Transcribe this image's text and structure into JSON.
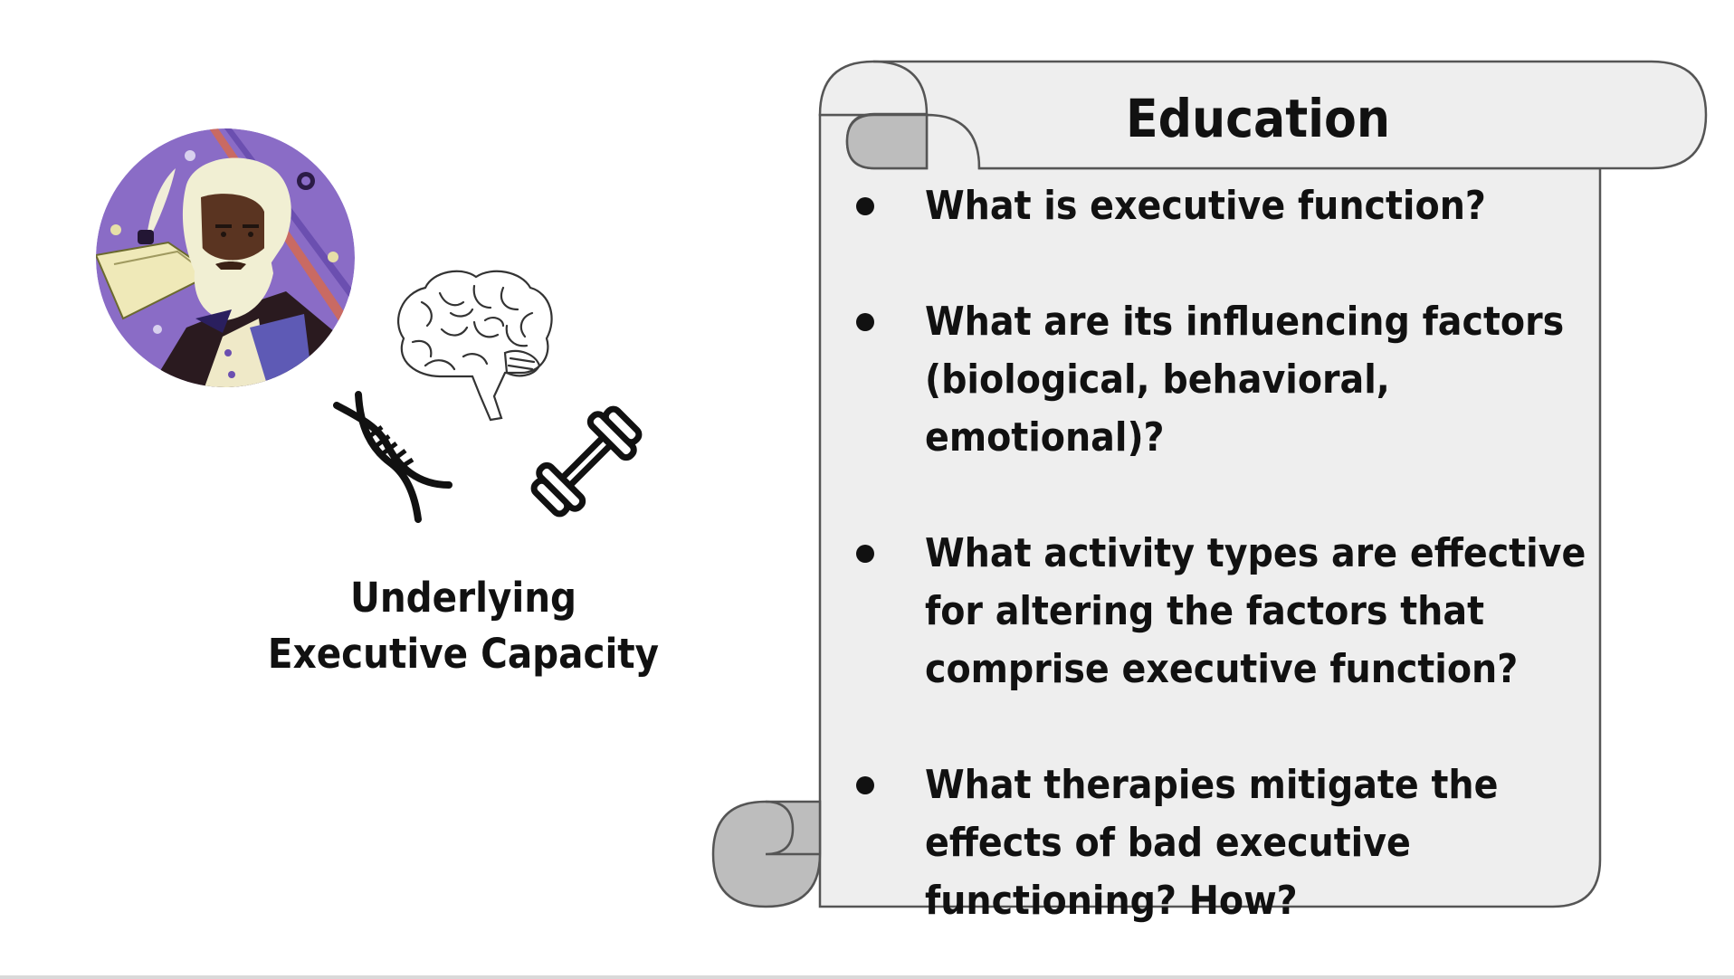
{
  "slide": {
    "caption_line1": "Underlying",
    "caption_line2": "Executive Capacity",
    "scroll": {
      "title": "Education",
      "questions": [
        "What is executive function?",
        "What are its influencing factors (biological, behavioral, emotional)?",
        "What activity types are effective for altering the factors that comprise executive function?",
        "What therapies mitigate the effects of bad executive functioning? How?"
      ]
    }
  },
  "icons": {
    "portrait": "portrait-illustration",
    "brain": "brain-icon",
    "dna": "dna-icon",
    "dumbbell": "dumbbell-icon"
  },
  "colors": {
    "scroll_fill": "#eeeeee",
    "scroll_curl": "#bdbdbd",
    "scroll_stroke": "#555555",
    "portrait_bg": "#8a6cc6",
    "text": "#111111"
  }
}
